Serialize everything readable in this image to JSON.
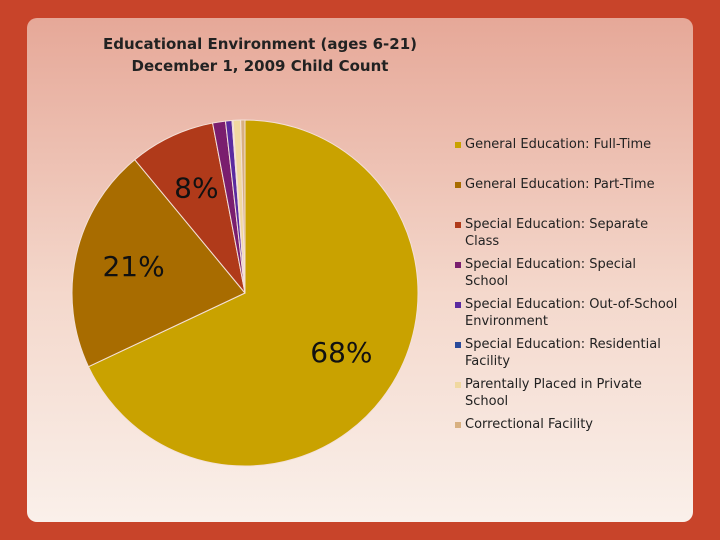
{
  "chart_data": {
    "type": "pie",
    "title": "Educational Environment (ages 6-21)",
    "subtitle": "December 1, 2009 Child Count",
    "categories": [
      "General Education: Full-Time",
      "General Education: Part-Time",
      "Special Education: Separate Class",
      "Special Education: Special School",
      "Special Education: Out-of-School Environment",
      "Special Education: Residential Facility",
      "Parentally Placed in Private School",
      "Correctional Facility"
    ],
    "values": [
      68,
      21,
      8,
      1.2,
      0.6,
      0.1,
      0.7,
      0.4
    ],
    "value_labels": [
      "68%",
      "21%",
      "8%",
      null,
      null,
      null,
      null,
      null
    ],
    "colors": [
      "#c9a200",
      "#a86c00",
      "#b03a1a",
      "#7a1e6e",
      "#5a2aa0",
      "#2a4a9a",
      "#f0d8a0",
      "#d8b080"
    ],
    "legend": "right"
  }
}
